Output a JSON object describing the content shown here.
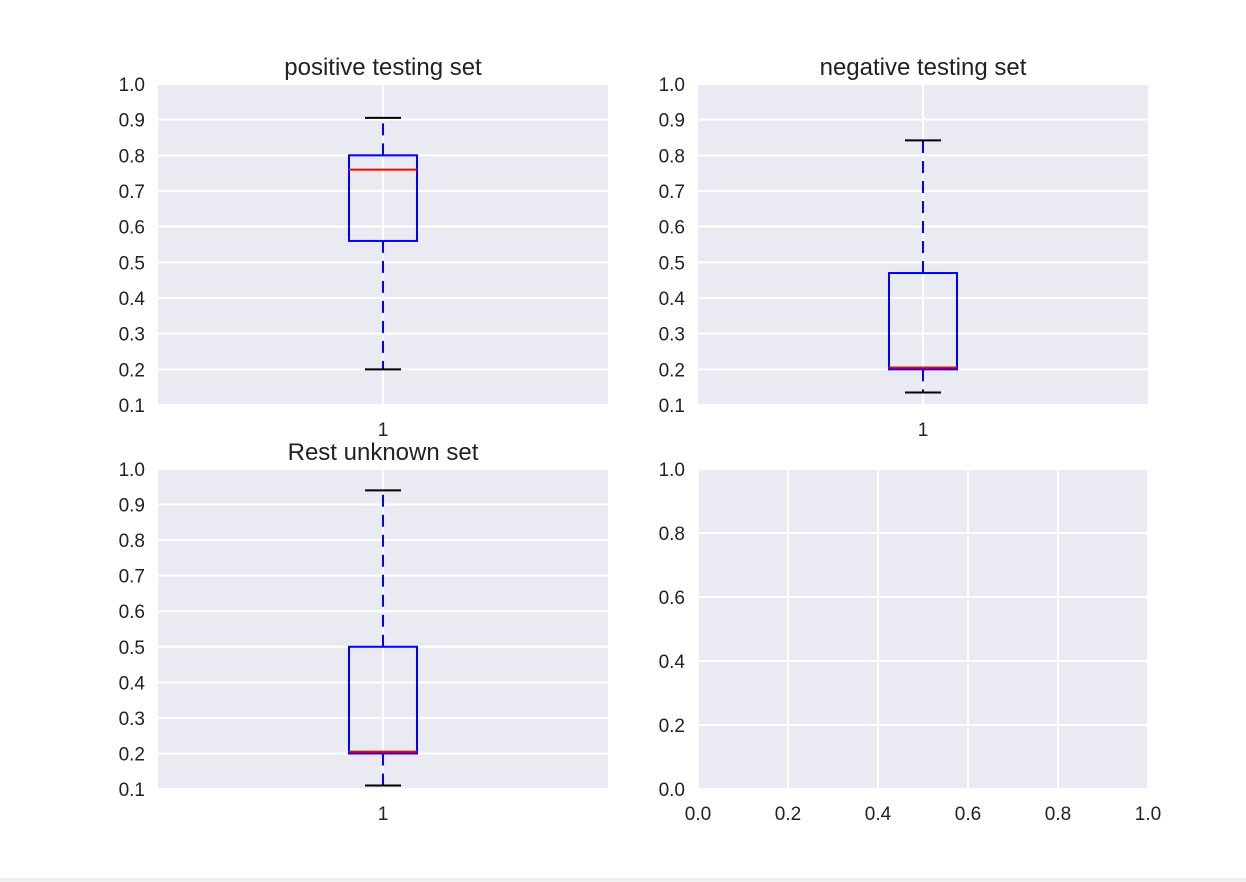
{
  "colors": {
    "axes_bg": "#eaeaf2",
    "grid": "#ffffff",
    "box": "#0000ff",
    "median": "#ff0000",
    "whisker": "#0000ff",
    "cap": "#000000"
  },
  "chart_data": [
    {
      "type": "box",
      "title": "positive testing set",
      "xlabel": "",
      "ylabel": "",
      "xticks": [
        "1"
      ],
      "ylim": [
        0.1,
        1.0
      ],
      "yticks": [
        "0.1",
        "0.2",
        "0.3",
        "0.4",
        "0.5",
        "0.6",
        "0.7",
        "0.8",
        "0.9",
        "1.0"
      ],
      "grid": true,
      "box": {
        "whisker_low": 0.2,
        "q1": 0.56,
        "median": 0.76,
        "q3": 0.8,
        "whisker_high": 0.905
      }
    },
    {
      "type": "box",
      "title": "negative testing set",
      "xlabel": "",
      "ylabel": "",
      "xticks": [
        "1"
      ],
      "ylim": [
        0.1,
        1.0
      ],
      "yticks": [
        "0.1",
        "0.2",
        "0.3",
        "0.4",
        "0.5",
        "0.6",
        "0.7",
        "0.8",
        "0.9",
        "1.0"
      ],
      "grid": true,
      "box": {
        "whisker_low": 0.135,
        "q1": 0.2,
        "median": 0.205,
        "q3": 0.47,
        "whisker_high": 0.842
      }
    },
    {
      "type": "box",
      "title": "Rest unknown set",
      "xlabel": "",
      "ylabel": "",
      "xticks": [
        "1"
      ],
      "ylim": [
        0.1,
        1.0
      ],
      "yticks": [
        "0.1",
        "0.2",
        "0.3",
        "0.4",
        "0.5",
        "0.6",
        "0.7",
        "0.8",
        "0.9",
        "1.0"
      ],
      "grid": true,
      "box": {
        "whisker_low": 0.11,
        "q1": 0.2,
        "median": 0.205,
        "q3": 0.5,
        "whisker_high": 0.94
      }
    },
    {
      "type": "empty",
      "title": "",
      "xlabel": "",
      "ylabel": "",
      "xlim": [
        0.0,
        1.0
      ],
      "ylim": [
        0.0,
        1.0
      ],
      "xticks": [
        "0.0",
        "0.2",
        "0.4",
        "0.6",
        "0.8",
        "1.0"
      ],
      "yticks": [
        "0.0",
        "0.2",
        "0.4",
        "0.6",
        "0.8",
        "1.0"
      ],
      "grid": true
    }
  ]
}
